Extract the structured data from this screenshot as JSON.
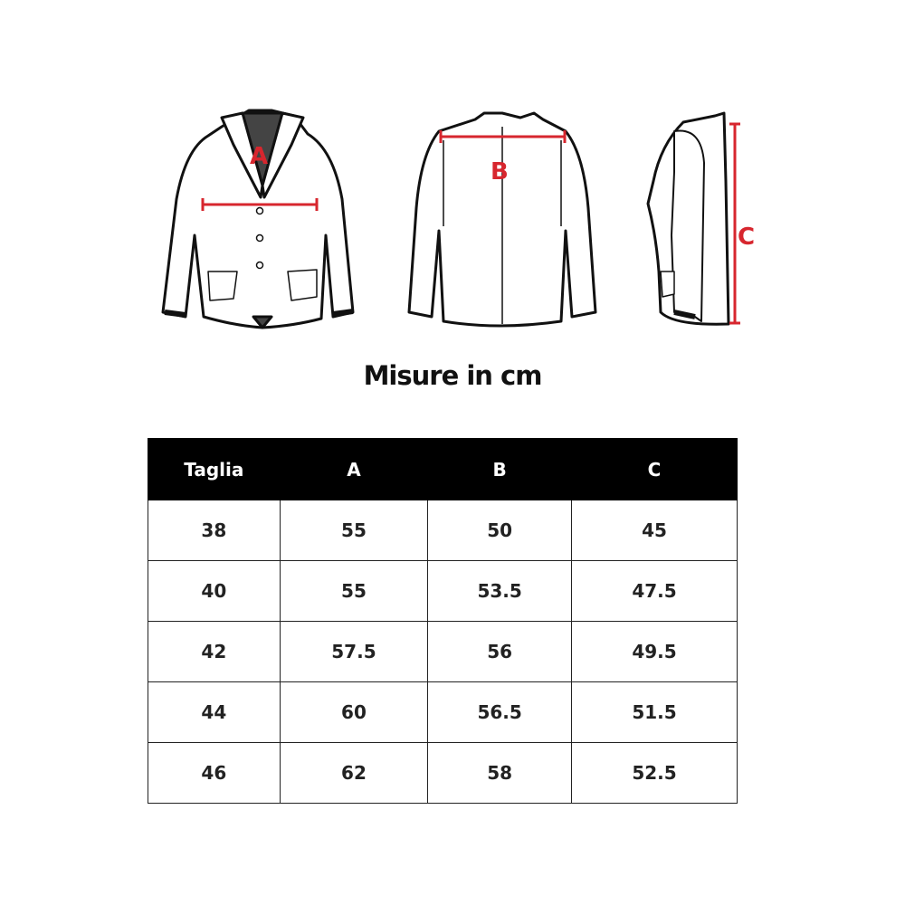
{
  "illustration": {
    "labels": {
      "a": "A",
      "b": "B",
      "c": "C"
    },
    "accent_color": "#d7262e"
  },
  "title": "Misure in cm",
  "table": {
    "headers": [
      "Taglia",
      "A",
      "B",
      "C"
    ],
    "rows": [
      [
        "38",
        "55",
        "50",
        "45"
      ],
      [
        "40",
        "55",
        "53.5",
        "47.5"
      ],
      [
        "42",
        "57.5",
        "56",
        "49.5"
      ],
      [
        "44",
        "60",
        "56.5",
        "51.5"
      ],
      [
        "46",
        "62",
        "58",
        "52.5"
      ]
    ]
  }
}
